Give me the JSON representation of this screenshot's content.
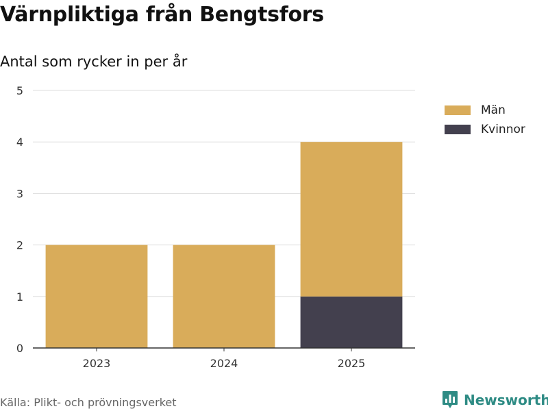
{
  "title": "Värnpliktiga från Bengtsfors",
  "subtitle": "Antal som rycker in per år",
  "source": "Källa: Plikt- och prövningsverket",
  "brand": {
    "name": "Newsworthy",
    "color": "#2e8b84",
    "icon": "bar-chart-logo-icon"
  },
  "colors": {
    "man": "#d9ac5a",
    "kvinnor": "#43404e",
    "grid": "#dddddd",
    "axis": "#333333",
    "tick_text": "#333333"
  },
  "chart_data": {
    "type": "bar",
    "stacked": true,
    "title": "Värnpliktiga från Bengtsfors",
    "subtitle": "Antal som rycker in per år",
    "xlabel": "",
    "ylabel": "",
    "categories": [
      "2023",
      "2024",
      "2025"
    ],
    "series": [
      {
        "name": "Kvinnor",
        "values": [
          0,
          0,
          1
        ],
        "color": "#43404e"
      },
      {
        "name": "Män",
        "values": [
          2,
          2,
          3
        ],
        "color": "#d9ac5a"
      }
    ],
    "ylim": [
      0,
      5
    ],
    "yticks": [
      "0",
      "1",
      "2",
      "3",
      "4",
      "5"
    ],
    "grid": true,
    "legend": {
      "position": "top-right",
      "entries": [
        "Män",
        "Kvinnor"
      ]
    }
  }
}
